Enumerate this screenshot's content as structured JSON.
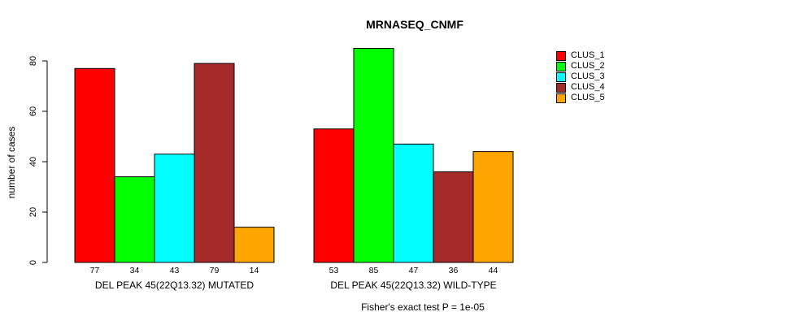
{
  "chart_data": {
    "type": "bar",
    "title": "MRNASEQ_CNMF",
    "xlabel": "",
    "ylabel": "number of cases",
    "ylim": [
      0,
      85
    ],
    "yticks": [
      0,
      20,
      40,
      60,
      80
    ],
    "grid": false,
    "legend_position": "top-right",
    "bar_value_labels_shown": true,
    "categories": [
      "DEL PEAK 45(22Q13.32) MUTATED",
      "DEL PEAK 45(22Q13.32) WILD-TYPE"
    ],
    "series": [
      {
        "name": "CLUS_1",
        "color": "#FF0000",
        "values": [
          77,
          53
        ]
      },
      {
        "name": "CLUS_2",
        "color": "#00FF00",
        "values": [
          34,
          85
        ]
      },
      {
        "name": "CLUS_3",
        "color": "#00FFFF",
        "values": [
          43,
          47
        ]
      },
      {
        "name": "CLUS_4",
        "color": "#A52A2A",
        "values": [
          79,
          36
        ]
      },
      {
        "name": "CLUS_5",
        "color": "#FFA500",
        "values": [
          14,
          44
        ]
      }
    ],
    "annotation": "Fisher's exact test P = 1e-05",
    "bar_border_color": "#000000",
    "axis_color": "#000000"
  }
}
